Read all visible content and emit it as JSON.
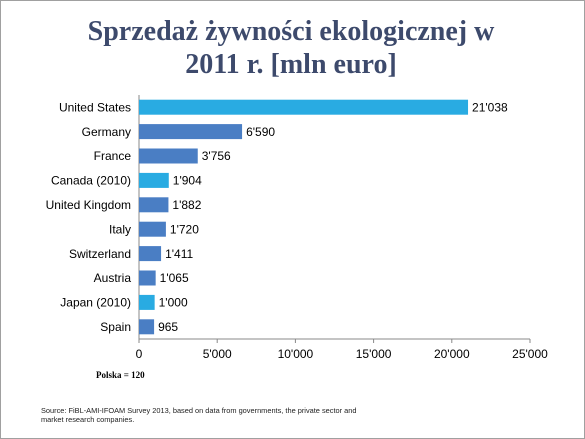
{
  "chart_data": {
    "type": "bar",
    "orientation": "horizontal",
    "title": "Sprzedaż żywności ekologicznej w 2011 r. [mln euro]",
    "categories": [
      "United States",
      "Germany",
      "France",
      "Canada (2010)",
      "United Kingdom",
      "Italy",
      "Switzerland",
      "Austria",
      "Japan (2010)",
      "Spain"
    ],
    "values": [
      21038,
      6590,
      3756,
      1904,
      1882,
      1720,
      1411,
      1065,
      1000,
      965
    ],
    "value_labels": [
      "21'038",
      "6'590",
      "3'756",
      "1'904",
      "1'882",
      "1'720",
      "1'411",
      "1'065",
      "1'000",
      "965"
    ],
    "colors": [
      "#29abe2",
      "#4a7ec4",
      "#4a7ec4",
      "#29abe2",
      "#4a7ec4",
      "#4a7ec4",
      "#4a7ec4",
      "#4a7ec4",
      "#29abe2",
      "#4a7ec4"
    ],
    "xlim": [
      0,
      25000
    ],
    "xticks": [
      0,
      {
        "value": 5000,
        "label": "5'000"
      },
      {
        "value": 10000,
        "label": "10'000"
      },
      {
        "value": 15000,
        "label": "15'000"
      },
      {
        "value": 20000,
        "label": "20'000"
      },
      {
        "value": 25000,
        "label": "25'000"
      }
    ],
    "annotation": "Polska = 120",
    "source": "Source: FiBL-AMI-IFOAM Survey 2013, based on data from governments, the private sector and market research companies."
  }
}
